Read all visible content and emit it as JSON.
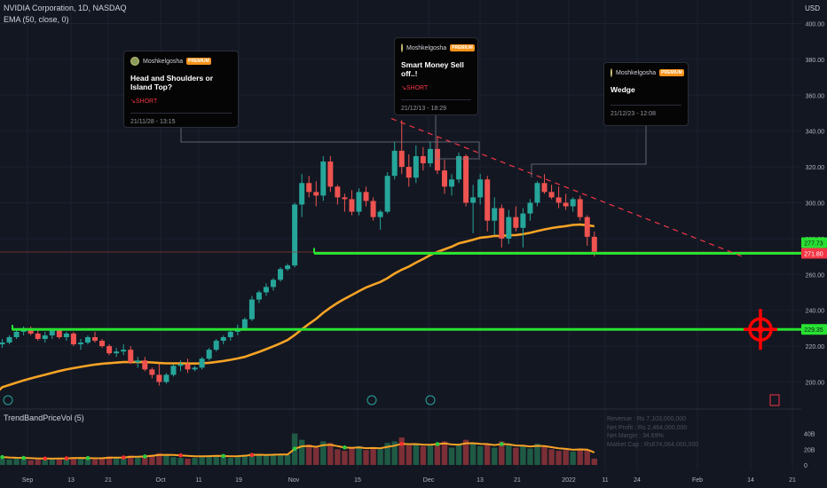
{
  "header": {
    "symbol_line": "NVIDIA Corporation, 1D, NASDAQ",
    "ema_line": "EMA (50, close, 0)",
    "volume_indicator": "TrendBandPriceVol (5)",
    "currency": "USD"
  },
  "ideas": [
    {
      "author": "Moshkelgosha",
      "badge": "PREMIUM",
      "title": "Head and Shoulders or Island Top?",
      "direction": "↘SHORT",
      "time": "21/11/28 - 13:15"
    },
    {
      "author": "Moshkelgosha",
      "badge": "PREMIUM",
      "title": "Smart Money Sell off..!",
      "direction": "↘SHORT",
      "time": "21/12/13 - 18:29"
    },
    {
      "author": "Moshkelgosha",
      "badge": "PREMIUM",
      "title": "Wedge",
      "direction": "",
      "time": "21/12/23 - 12:08"
    }
  ],
  "volume_stats": [
    "Revenue : Rs 7,103,000,000",
    "Net Profit : Rs 2,464,000,000",
    "Net Margin : 34.69%",
    "Market Cap : Rs674,064,000,000"
  ],
  "colors": {
    "up": "#26a69a",
    "down": "#ef5350",
    "ema": "#f7a325",
    "support": "#28e231",
    "trendline": "#f23645",
    "target": "#ff0000"
  },
  "chart_data": [
    {
      "type": "candlestick",
      "title": "NVIDIA Corporation, 1D, NASDAQ",
      "ylim": [
        190,
        410
      ],
      "y_ticks": [
        200,
        220,
        240,
        260,
        280,
        300,
        320,
        340,
        360,
        380,
        400
      ],
      "y_tick_labels": [
        "200.00",
        "220.00",
        "240.00",
        "260.00",
        "280.00",
        "300.00",
        "320.00",
        "340.00",
        "360.00",
        "380.00",
        "400.00"
      ],
      "x_tick_labels": [
        "Sep",
        "13",
        "21",
        "Oct",
        "11",
        "19",
        "Nov",
        "15",
        "Dec",
        "13",
        "21",
        "2022",
        "11",
        "24",
        "Feb",
        "14",
        "21"
      ],
      "series": [
        {
          "name": "NVDA",
          "ohlc": [
            [
              221,
              224,
              219,
              222
            ],
            [
              222,
              226,
              221,
              225
            ],
            [
              225,
              229,
              224,
              228
            ],
            [
              228,
              231,
              226,
              230
            ],
            [
              230,
              231,
              226,
              227
            ],
            [
              227,
              229,
              223,
              224
            ],
            [
              224,
              228,
              222,
              226
            ],
            [
              226,
              230,
              224,
              229
            ],
            [
              229,
              230,
              224,
              225
            ],
            [
              225,
              228,
              223,
              227
            ],
            [
              227,
              228,
              220,
              221
            ],
            [
              221,
              224,
              218,
              222
            ],
            [
              222,
              226,
              221,
              225
            ],
            [
              225,
              228,
              222,
              223
            ],
            [
              223,
              224,
              219,
              220
            ],
            [
              220,
              221,
              215,
              216
            ],
            [
              216,
              219,
              214,
              217
            ],
            [
              217,
              221,
              215,
              218
            ],
            [
              218,
              220,
              210,
              211
            ],
            [
              211,
              214,
              208,
              212
            ],
            [
              212,
              214,
              206,
              207
            ],
            [
              207,
              208,
              202,
              204
            ],
            [
              204,
              210,
              198,
              200
            ],
            [
              200,
              205,
              199,
              204
            ],
            [
              204,
              210,
              203,
              209
            ],
            [
              209,
              212,
              206,
              210
            ],
            [
              210,
              213,
              205,
              207
            ],
            [
              207,
              209,
              206,
              208
            ],
            [
              208,
              214,
              207,
              213
            ],
            [
              213,
              219,
              212,
              218
            ],
            [
              218,
              224,
              217,
              223
            ],
            [
              223,
              226,
              221,
              225
            ],
            [
              225,
              229,
              223,
              228
            ],
            [
              228,
              232,
              226,
              230
            ],
            [
              230,
              236,
              229,
              235
            ],
            [
              235,
              248,
              234,
              246
            ],
            [
              246,
              251,
              244,
              250
            ],
            [
              250,
              255,
              248,
              253
            ],
            [
              253,
              258,
              251,
              257
            ],
            [
              257,
              264,
              256,
              263
            ],
            [
              263,
              266,
              262,
              265
            ],
            [
              265,
              300,
              264,
              299
            ],
            [
              299,
              316,
              292,
              311
            ],
            [
              311,
              315,
              303,
              306
            ],
            [
              306,
              312,
              298,
              304
            ],
            [
              304,
              326,
              301,
              323
            ],
            [
              323,
              326,
              306,
              309
            ],
            [
              309,
              310,
              299,
              303
            ],
            [
              303,
              305,
              295,
              302
            ],
            [
              302,
              307,
              293,
              295
            ],
            [
              295,
              308,
              293,
              306
            ],
            [
              306,
              309,
              298,
              301
            ],
            [
              301,
              303,
              290,
              292
            ],
            [
              292,
              296,
              285,
              295
            ],
            [
              295,
              317,
              294,
              315
            ],
            [
              315,
              334,
              313,
              329
            ],
            [
              329,
              346,
              316,
              320
            ],
            [
              320,
              327,
              309,
              314
            ],
            [
              314,
              332,
              311,
              326
            ],
            [
              326,
              331,
              318,
              322
            ],
            [
              322,
              334,
              320,
              330
            ],
            [
              330,
              337,
              316,
              318
            ],
            [
              318,
              324,
              305,
              309
            ],
            [
              309,
              316,
              304,
              313
            ],
            [
              313,
              328,
              311,
              326
            ],
            [
              326,
              327,
              298,
              300
            ],
            [
              300,
              310,
              283,
              303
            ],
            [
              303,
              316,
              299,
              313
            ],
            [
              313,
              315,
              284,
              290
            ],
            [
              290,
              303,
              282,
              297
            ],
            [
              297,
              299,
              275,
              280
            ],
            [
              280,
              296,
              277,
              292
            ],
            [
              292,
              298,
              284,
              286
            ],
            [
              286,
              297,
              275,
              294
            ],
            [
              294,
              302,
              290,
              300
            ],
            [
              300,
              312,
              298,
              311
            ],
            [
              311,
              316,
              305,
              306
            ],
            [
              306,
              310,
              302,
              303
            ],
            [
              303,
              309,
              297,
              300
            ],
            [
              300,
              305,
              296,
              298
            ],
            [
              298,
              303,
              295,
              302
            ],
            [
              302,
              304,
              290,
              292
            ],
            [
              292,
              293,
              276,
              281
            ],
            [
              281,
              284,
              270,
              272
            ]
          ]
        },
        {
          "name": "EMA (50, close, 0)",
          "values": [
            197.1,
            198.3,
            199.6,
            200.9,
            202.0,
            203.0,
            204.0,
            205.1,
            206.1,
            207.0,
            207.7,
            208.4,
            209.1,
            209.7,
            210.2,
            210.5,
            210.8,
            211.1,
            211.1,
            211.2,
            211.1,
            210.9,
            210.6,
            210.4,
            210.4,
            210.4,
            210.3,
            210.3,
            210.4,
            210.7,
            211.2,
            211.7,
            212.4,
            213.1,
            214.0,
            215.4,
            216.8,
            218.3,
            219.9,
            221.6,
            223.4,
            226.2,
            229.4,
            232.4,
            235.2,
            238.6,
            241.5,
            244.1,
            246.4,
            248.5,
            250.7,
            252.7,
            254.3,
            255.8,
            257.9,
            260.5,
            262.6,
            264.4,
            266.6,
            268.6,
            270.8,
            272.6,
            274.0,
            275.5,
            277.4,
            278.3,
            279.3,
            280.5,
            280.9,
            281.5,
            281.5,
            281.9,
            282.0,
            282.5,
            283.2,
            284.2,
            285.1,
            285.9,
            286.5,
            287.0,
            287.6,
            287.8,
            287.5,
            286.9
          ]
        }
      ],
      "annotations": [
        {
          "type": "horizontal_support",
          "value": 271.8,
          "label": "271.80"
        },
        {
          "type": "horizontal_support",
          "value": 229.35,
          "label": "229.35"
        },
        {
          "type": "price_label",
          "value": 277.73,
          "label": "277.73"
        },
        {
          "type": "descending_trendline",
          "from": 346,
          "to": 270
        },
        {
          "type": "target_marker",
          "value": 229.35
        }
      ]
    },
    {
      "type": "bar",
      "title": "TrendBandPriceVol (5)",
      "ylim": [
        0,
        50
      ],
      "y_ticks": [
        0,
        20,
        40
      ],
      "y_tick_labels": [
        "0",
        "20B",
        "40B"
      ],
      "values": [
        8,
        7,
        9,
        8,
        6,
        7,
        8,
        7,
        9,
        8,
        10,
        9,
        8,
        7,
        9,
        11,
        10,
        9,
        12,
        10,
        11,
        13,
        15,
        12,
        10,
        9,
        8,
        9,
        10,
        11,
        12,
        10,
        9,
        11,
        13,
        15,
        14,
        12,
        13,
        14,
        13,
        40,
        32,
        26,
        22,
        30,
        28,
        20,
        18,
        21,
        24,
        19,
        22,
        20,
        28,
        30,
        35,
        25,
        27,
        24,
        26,
        28,
        30,
        22,
        25,
        32,
        28,
        24,
        26,
        22,
        30,
        25,
        22,
        24,
        21,
        27,
        23,
        20,
        18,
        19,
        17,
        21,
        19,
        8
      ],
      "band": [
        10,
        9.5,
        9.2,
        9,
        8.6,
        8.2,
        8.1,
        8,
        8.2,
        8.4,
        8.8,
        8.9,
        8.8,
        8.5,
        8.6,
        9.1,
        9.4,
        9.5,
        10.3,
        10.5,
        10.8,
        11.6,
        12.6,
        12.9,
        12.8,
        12.2,
        11.5,
        11.1,
        11,
        11.2,
        11.5,
        11.4,
        11.1,
        11.2,
        11.7,
        12.6,
        13,
        12.8,
        13,
        13.3,
        13.2,
        20.5,
        23.7,
        24.2,
        23,
        25.2,
        25.7,
        24,
        22.2,
        21.7,
        22.3,
        21.4,
        21.6,
        21.2,
        23,
        24.5,
        26.9,
        26.4,
        26.6,
        25.9,
        25.8,
        26.5,
        27.4,
        26.1,
        25.8,
        27.6,
        27.7,
        26.8,
        26.6,
        25.3,
        26.6,
        26.2,
        24.8,
        24.6,
        23.4,
        24.3,
        23.9,
        22.6,
        21.2,
        20.4,
        19.3,
        19.8,
        19.6,
        15.9
      ],
      "markers_up_idx": [
        0,
        3,
        12,
        20,
        31,
        41,
        48,
        61,
        70
      ],
      "markers_down_idx": [
        6,
        9,
        17,
        25,
        35,
        56
      ]
    }
  ]
}
